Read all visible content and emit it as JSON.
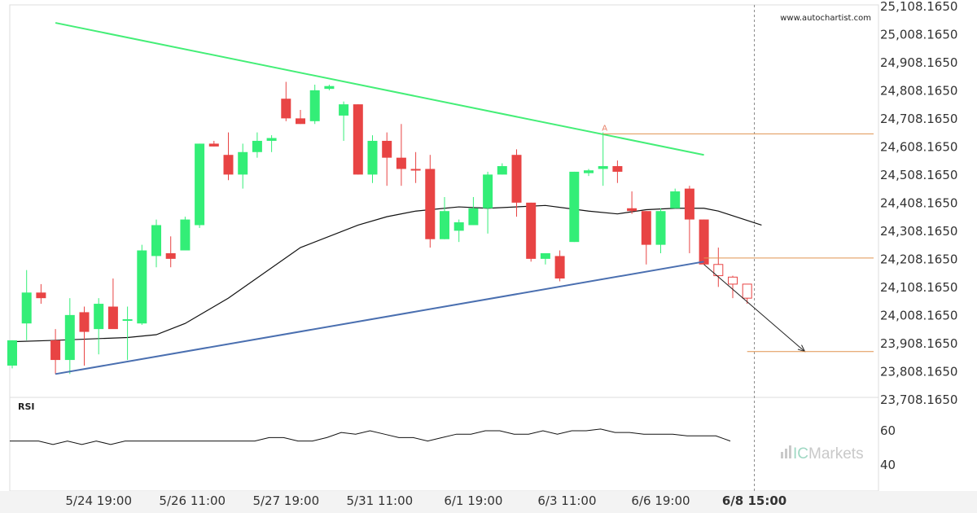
{
  "source_text": "www.autochartist.com",
  "brand": {
    "prefix": "IC",
    "name": "Markets"
  },
  "colors": {
    "bull": "#33ee77",
    "bear": "#e84444",
    "resistance": "#44ee77",
    "support": "#4a6fb0",
    "level": "#e0934f",
    "ma": "#111111",
    "rsi": "#111111"
  },
  "chart_data": [
    {
      "type": "candlestick",
      "y_ticks": [
        "25,108.1650",
        "25,008.1650",
        "24,908.1650",
        "24,808.1650",
        "24,708.1650",
        "24,608.1650",
        "24,508.1650",
        "24,408.1650",
        "24,308.1650",
        "24,208.1650",
        "24,108.1650",
        "24,008.1650",
        "23,908.1650",
        "23,808.1650",
        "23,708.1650"
      ],
      "ylim": [
        23658.165,
        25108.165
      ],
      "x_ticks": [
        {
          "label": "5/24 19:00",
          "index": 6
        },
        {
          "label": "5/26 11:00",
          "index": 12.5
        },
        {
          "label": "5/27 19:00",
          "index": 19
        },
        {
          "label": "5/31 11:00",
          "index": 25.5
        },
        {
          "label": "6/1 19:00",
          "index": 32
        },
        {
          "label": "6/3 11:00",
          "index": 38.5
        },
        {
          "label": "6/6 19:00",
          "index": 45
        },
        {
          "label": "6/8 15:00",
          "index": 51.5,
          "emphasis": true
        }
      ],
      "pattern_point_label": "A",
      "candles": [
        {
          "o": 23830,
          "h": 23920,
          "l": 23820,
          "c": 23920
        },
        {
          "o": 23980,
          "h": 24170,
          "l": 23920,
          "c": 24090
        },
        {
          "o": 24090,
          "h": 24120,
          "l": 24050,
          "c": 24070
        },
        {
          "o": 23920,
          "h": 23960,
          "l": 23800,
          "c": 23850
        },
        {
          "o": 23850,
          "h": 24070,
          "l": 23800,
          "c": 24010
        },
        {
          "o": 24020,
          "h": 24040,
          "l": 23830,
          "c": 23950
        },
        {
          "o": 23960,
          "h": 24070,
          "l": 23870,
          "c": 24050
        },
        {
          "o": 24040,
          "h": 24140,
          "l": 23970,
          "c": 23960
        },
        {
          "o": 23990,
          "h": 24040,
          "l": 23850,
          "c": 23995
        },
        {
          "o": 23980,
          "h": 24260,
          "l": 23975,
          "c": 24240
        },
        {
          "o": 24220,
          "h": 24350,
          "l": 24180,
          "c": 24330
        },
        {
          "o": 24230,
          "h": 24290,
          "l": 24180,
          "c": 24210
        },
        {
          "o": 24240,
          "h": 24360,
          "l": 24240,
          "c": 24350
        },
        {
          "o": 24330,
          "h": 24620,
          "l": 24320,
          "c": 24620
        },
        {
          "o": 24620,
          "h": 24630,
          "l": 24610,
          "c": 24610
        },
        {
          "o": 24580,
          "h": 24660,
          "l": 24490,
          "c": 24510
        },
        {
          "o": 24510,
          "h": 24620,
          "l": 24460,
          "c": 24590
        },
        {
          "o": 24590,
          "h": 24660,
          "l": 24570,
          "c": 24630
        },
        {
          "o": 24630,
          "h": 24650,
          "l": 24590,
          "c": 24640
        },
        {
          "o": 24780,
          "h": 24840,
          "l": 24700,
          "c": 24710
        },
        {
          "o": 24710,
          "h": 24740,
          "l": 24690,
          "c": 24690
        },
        {
          "o": 24700,
          "h": 24830,
          "l": 24690,
          "c": 24810
        },
        {
          "o": 24815,
          "h": 24830,
          "l": 24810,
          "c": 24825
        },
        {
          "o": 24720,
          "h": 24770,
          "l": 24630,
          "c": 24760
        },
        {
          "o": 24760,
          "h": 24760,
          "l": 24510,
          "c": 24510
        },
        {
          "o": 24510,
          "h": 24650,
          "l": 24480,
          "c": 24630
        },
        {
          "o": 24630,
          "h": 24660,
          "l": 24470,
          "c": 24570
        },
        {
          "o": 24570,
          "h": 24690,
          "l": 24470,
          "c": 24530
        },
        {
          "o": 24530,
          "h": 24590,
          "l": 24480,
          "c": 24525
        },
        {
          "o": 24530,
          "h": 24580,
          "l": 24250,
          "c": 24280
        },
        {
          "o": 24280,
          "h": 24430,
          "l": 24280,
          "c": 24380
        },
        {
          "o": 24310,
          "h": 24350,
          "l": 24270,
          "c": 24340
        },
        {
          "o": 24330,
          "h": 24430,
          "l": 24330,
          "c": 24390
        },
        {
          "o": 24390,
          "h": 24520,
          "l": 24300,
          "c": 24510
        },
        {
          "o": 24510,
          "h": 24550,
          "l": 24510,
          "c": 24540
        },
        {
          "o": 24580,
          "h": 24600,
          "l": 24360,
          "c": 24410
        },
        {
          "o": 24410,
          "h": 24410,
          "l": 24200,
          "c": 24210
        },
        {
          "o": 24210,
          "h": 24230,
          "l": 24190,
          "c": 24230
        },
        {
          "o": 24220,
          "h": 24240,
          "l": 24130,
          "c": 24140
        },
        {
          "o": 24270,
          "h": 24520,
          "l": 24270,
          "c": 24520
        },
        {
          "o": 24515,
          "h": 24530,
          "l": 24505,
          "c": 24525
        },
        {
          "o": 24530,
          "h": 24660,
          "l": 24470,
          "c": 24540
        },
        {
          "o": 24540,
          "h": 24560,
          "l": 24480,
          "c": 24520
        },
        {
          "o": 24390,
          "h": 24450,
          "l": 24370,
          "c": 24380
        },
        {
          "o": 24380,
          "h": 24380,
          "l": 24190,
          "c": 24260
        },
        {
          "o": 24260,
          "h": 24390,
          "l": 24230,
          "c": 24380
        },
        {
          "o": 24390,
          "h": 24460,
          "l": 24390,
          "c": 24450
        },
        {
          "o": 24460,
          "h": 24470,
          "l": 24230,
          "c": 24350
        },
        {
          "o": 24350,
          "h": 24350,
          "l": 24190,
          "c": 24190
        }
      ],
      "forecast_candles": [
        {
          "o": 24190,
          "h": 24250,
          "l": 24110,
          "c": 24150
        },
        {
          "o": 24145,
          "h": 24150,
          "l": 24070,
          "c": 24120
        },
        {
          "o": 24120,
          "h": 24120,
          "l": 24050,
          "c": 24070
        }
      ],
      "moving_average": [
        [
          0,
          23915
        ],
        [
          3,
          23920
        ],
        [
          8,
          23930
        ],
        [
          10,
          23940
        ],
        [
          12,
          23980
        ],
        [
          15,
          24070
        ],
        [
          20,
          24250
        ],
        [
          24,
          24330
        ],
        [
          26,
          24360
        ],
        [
          28,
          24380
        ],
        [
          31,
          24395
        ],
        [
          33,
          24390
        ],
        [
          37,
          24400
        ],
        [
          40,
          24380
        ],
        [
          42,
          24370
        ],
        [
          44,
          24385
        ],
        [
          46,
          24390
        ],
        [
          48,
          24390
        ],
        [
          49,
          24380
        ],
        [
          52,
          24330
        ]
      ],
      "resistance_line": {
        "start": [
          3,
          25050
        ],
        "end": [
          48,
          24580
        ]
      },
      "support_line": {
        "start": [
          3,
          23800
        ],
        "end": [
          48,
          24200
        ]
      },
      "projection": {
        "start": [
          48,
          24190
        ],
        "end": [
          55,
          23880
        ]
      },
      "levels": [
        {
          "name": "pattern-high",
          "value": 24655,
          "from": 41
        },
        {
          "name": "breakout",
          "value": 24213,
          "from": 48
        },
        {
          "name": "target",
          "value": 23880,
          "from": 51
        }
      ]
    },
    {
      "type": "line",
      "title": "RSI",
      "y_ticks": [
        "60",
        "40"
      ],
      "values": [
        54,
        54,
        54,
        52,
        54,
        52,
        54,
        52,
        54,
        54,
        54,
        54,
        54,
        54,
        54,
        54,
        54,
        54,
        56,
        56,
        54,
        54,
        56,
        59,
        58,
        60,
        58,
        56,
        56,
        54,
        56,
        58,
        58,
        60,
        60,
        58,
        58,
        60,
        58,
        60,
        60,
        61,
        59,
        59,
        58,
        58,
        58,
        57,
        57,
        57,
        54
      ]
    }
  ]
}
